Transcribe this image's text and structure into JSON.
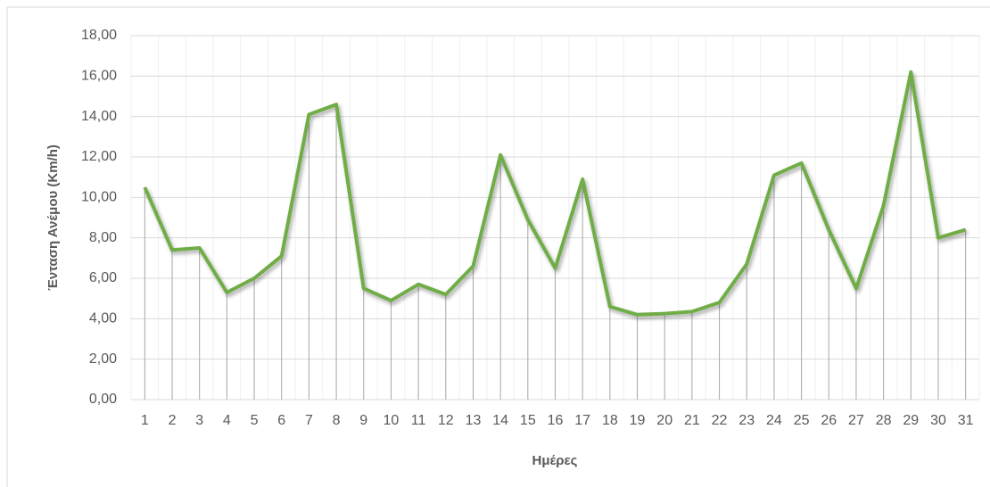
{
  "chart_data": {
    "type": "line",
    "y_label": "Ένταση  Ανέμου (Km/h)",
    "x_label": "Ημέρες",
    "categories": [
      "1",
      "2",
      "3",
      "4",
      "5",
      "6",
      "7",
      "8",
      "9",
      "10",
      "11",
      "12",
      "13",
      "14",
      "15",
      "16",
      "17",
      "18",
      "19",
      "20",
      "21",
      "22",
      "23",
      "24",
      "25",
      "26",
      "27",
      "28",
      "29",
      "30",
      "31"
    ],
    "values": [
      10.5,
      7.4,
      7.5,
      5.3,
      6.0,
      7.1,
      14.1,
      14.6,
      5.5,
      4.9,
      5.7,
      5.2,
      6.6,
      12.1,
      8.9,
      6.5,
      10.9,
      4.6,
      4.2,
      4.25,
      4.35,
      4.8,
      6.7,
      11.1,
      11.7,
      8.4,
      5.5,
      9.6,
      16.2,
      8.0,
      8.4
    ],
    "color": "#70ad47",
    "ylim": [
      0,
      18
    ],
    "yticks": [
      {
        "value": 0,
        "label": "0,00"
      },
      {
        "value": 2,
        "label": "2,00"
      },
      {
        "value": 4,
        "label": "4,00"
      },
      {
        "value": 6,
        "label": "6,00"
      },
      {
        "value": 8,
        "label": "8,00"
      },
      {
        "value": 10,
        "label": "10,00"
      },
      {
        "value": 12,
        "label": "12,00"
      },
      {
        "value": 14,
        "label": "14,00"
      },
      {
        "value": 16,
        "label": "16,00"
      },
      {
        "value": 18,
        "label": "18,00"
      }
    ],
    "grid": true,
    "drop_lines": true
  }
}
